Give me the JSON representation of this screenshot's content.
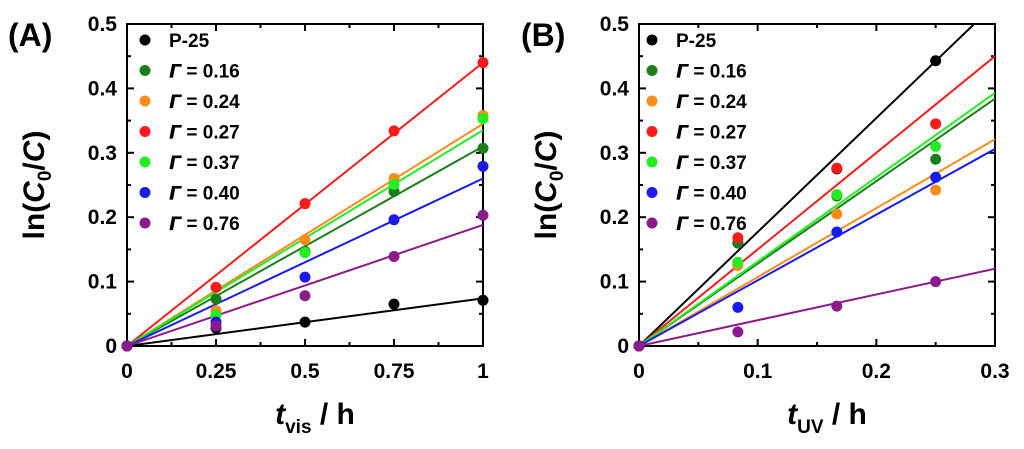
{
  "chart_data": [
    {
      "type": "scatter",
      "panel_label": "(A)",
      "x_var": "t",
      "x_sub": "vis",
      "x_unit": "/ h",
      "y_prefix": "ln(",
      "y_var1": "C",
      "y_sub": "0",
      "y_slash": "/",
      "y_var2": "C",
      "y_suffix": ")",
      "xlim": [
        0,
        1
      ],
      "ylim": [
        0,
        0.5
      ],
      "xticks": [
        0,
        0.25,
        0.5,
        0.75,
        1
      ],
      "xtick_labels": [
        "0",
        "0.25",
        "0.5",
        "0.75",
        "1"
      ],
      "yticks": [
        0,
        0.1,
        0.2,
        0.3,
        0.4,
        0.5
      ],
      "ytick_labels": [
        "0",
        "0.1",
        "0.2",
        "0.3",
        "0.4",
        "0.5"
      ],
      "grid": false,
      "legend_position": "top-left",
      "series": [
        {
          "prefix": "",
          "name": "P-25",
          "color": "#000000",
          "x": [
            0,
            0.25,
            0.5,
            0.75,
            1
          ],
          "y": [
            0,
            0.028,
            0.037,
            0.065,
            0.071
          ],
          "fit_slope": 0.074
        },
        {
          "prefix": "Γ",
          "name": " = 0.16",
          "color": "#1a7f1a",
          "x": [
            0,
            0.25,
            0.5,
            0.75,
            1
          ],
          "y": [
            0,
            0.073,
            0.147,
            0.24,
            0.307
          ],
          "fit_slope": 0.31
        },
        {
          "prefix": "Γ",
          "name": " = 0.24",
          "color": "#ff8c1a",
          "x": [
            0,
            0.25,
            0.5,
            0.75,
            1
          ],
          "y": [
            0,
            0.055,
            0.165,
            0.26,
            0.358
          ],
          "fit_slope": 0.345
        },
        {
          "prefix": "Γ",
          "name": " = 0.27",
          "color": "#ff1a1a",
          "x": [
            0,
            0.25,
            0.5,
            0.75,
            1
          ],
          "y": [
            0,
            0.091,
            0.221,
            0.334,
            0.44
          ],
          "fit_slope": 0.44
        },
        {
          "prefix": "Γ",
          "name": " = 0.37",
          "color": "#22ee22",
          "x": [
            0,
            0.25,
            0.5,
            0.75,
            1
          ],
          "y": [
            0,
            0.048,
            0.145,
            0.251,
            0.353
          ],
          "fit_slope": 0.335
        },
        {
          "prefix": "Γ",
          "name": " = 0.40",
          "color": "#1a1aee",
          "x": [
            0,
            0.25,
            0.5,
            0.75,
            1
          ],
          "y": [
            0,
            0.037,
            0.107,
            0.196,
            0.279
          ],
          "fit_slope": 0.26
        },
        {
          "prefix": "Γ",
          "name": " = 0.76",
          "color": "#8b1a8b",
          "x": [
            0,
            0.25,
            0.5,
            0.75,
            1
          ],
          "y": [
            0,
            0.031,
            0.078,
            0.139,
            0.203
          ],
          "fit_slope": 0.188
        }
      ]
    },
    {
      "type": "scatter",
      "panel_label": "(B)",
      "x_var": "t",
      "x_sub": "UV",
      "x_unit": "/ h",
      "y_prefix": "ln(",
      "y_var1": "C",
      "y_sub": "0",
      "y_slash": "/",
      "y_var2": "C",
      "y_suffix": ")",
      "xlim": [
        0,
        0.3
      ],
      "ylim": [
        0,
        0.5
      ],
      "xticks": [
        0,
        0.1,
        0.2,
        0.3
      ],
      "xtick_labels": [
        "0",
        "0.1",
        "0.2",
        "0.3"
      ],
      "yticks": [
        0,
        0.1,
        0.2,
        0.3,
        0.4,
        0.5
      ],
      "ytick_labels": [
        "0",
        "0.1",
        "0.2",
        "0.3",
        "0.4",
        "0.5"
      ],
      "grid": false,
      "legend_position": "top-left",
      "series": [
        {
          "prefix": "",
          "name": "P-25",
          "color": "#000000",
          "x": [
            0,
            0.0833,
            0.1667,
            0.25
          ],
          "y": [
            0,
            0.16,
            0.275,
            0.443
          ],
          "fit_slope": 1.77
        },
        {
          "prefix": "Γ",
          "name": " = 0.16",
          "color": "#1a7f1a",
          "x": [
            0,
            0.0833,
            0.1667,
            0.25
          ],
          "y": [
            0,
            0.16,
            0.233,
            0.29
          ],
          "fit_slope": 1.28
        },
        {
          "prefix": "Γ",
          "name": " = 0.24",
          "color": "#ff8c1a",
          "x": [
            0,
            0.0833,
            0.1667,
            0.25
          ],
          "y": [
            0,
            0.125,
            0.205,
            0.242
          ],
          "fit_slope": 1.07
        },
        {
          "prefix": "Γ",
          "name": " = 0.27",
          "color": "#ff1a1a",
          "x": [
            0,
            0.0833,
            0.1667,
            0.25
          ],
          "y": [
            0,
            0.168,
            0.276,
            0.345
          ],
          "fit_slope": 1.5
        },
        {
          "prefix": "Γ",
          "name": " = 0.37",
          "color": "#22ee22",
          "x": [
            0,
            0.0833,
            0.1667,
            0.25
          ],
          "y": [
            0,
            0.13,
            0.235,
            0.31
          ],
          "fit_slope": 1.31
        },
        {
          "prefix": "Γ",
          "name": " = 0.40",
          "color": "#1a1aee",
          "x": [
            0,
            0.0833,
            0.1667,
            0.25
          ],
          "y": [
            0,
            0.06,
            0.177,
            0.262
          ],
          "fit_slope": 1.02
        },
        {
          "prefix": "Γ",
          "name": " = 0.76",
          "color": "#8b1a8b",
          "x": [
            0,
            0.0833,
            0.1667,
            0.25
          ],
          "y": [
            0,
            0.022,
            0.062,
            0.1
          ],
          "fit_slope": 0.4
        }
      ]
    }
  ]
}
